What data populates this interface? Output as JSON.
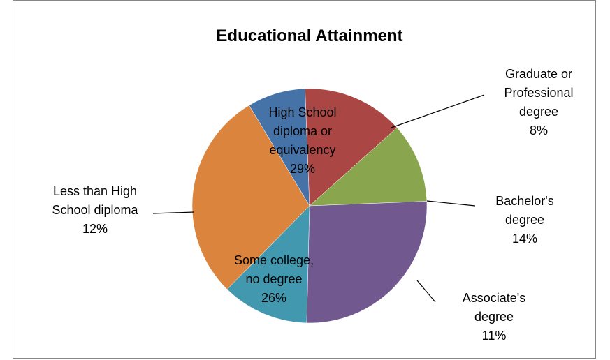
{
  "chart_data": {
    "type": "pie",
    "title": "Educational Attainment",
    "slices": [
      {
        "label": [
          "Graduate or",
          "Professional",
          "degree"
        ],
        "percent_label": "8%",
        "value": 8,
        "color": "#4572A7"
      },
      {
        "label": [
          "Bachelor's",
          "degree"
        ],
        "percent_label": "14%",
        "value": 14,
        "color": "#AA4643"
      },
      {
        "label": [
          "Associate's",
          "degree"
        ],
        "percent_label": "11%",
        "value": 11,
        "color": "#89A54E"
      },
      {
        "label": [
          "Some college,",
          "no degree"
        ],
        "percent_label": "26%",
        "value": 26,
        "color": "#71588F"
      },
      {
        "label": [
          "Less than High",
          "School diploma"
        ],
        "percent_label": "12%",
        "value": 12,
        "color": "#4198AF"
      },
      {
        "label": [
          "High School",
          "diploma or",
          "equivalency"
        ],
        "percent_label": "29%",
        "value": 29,
        "color": "#DB843D"
      }
    ],
    "legend": "none"
  }
}
